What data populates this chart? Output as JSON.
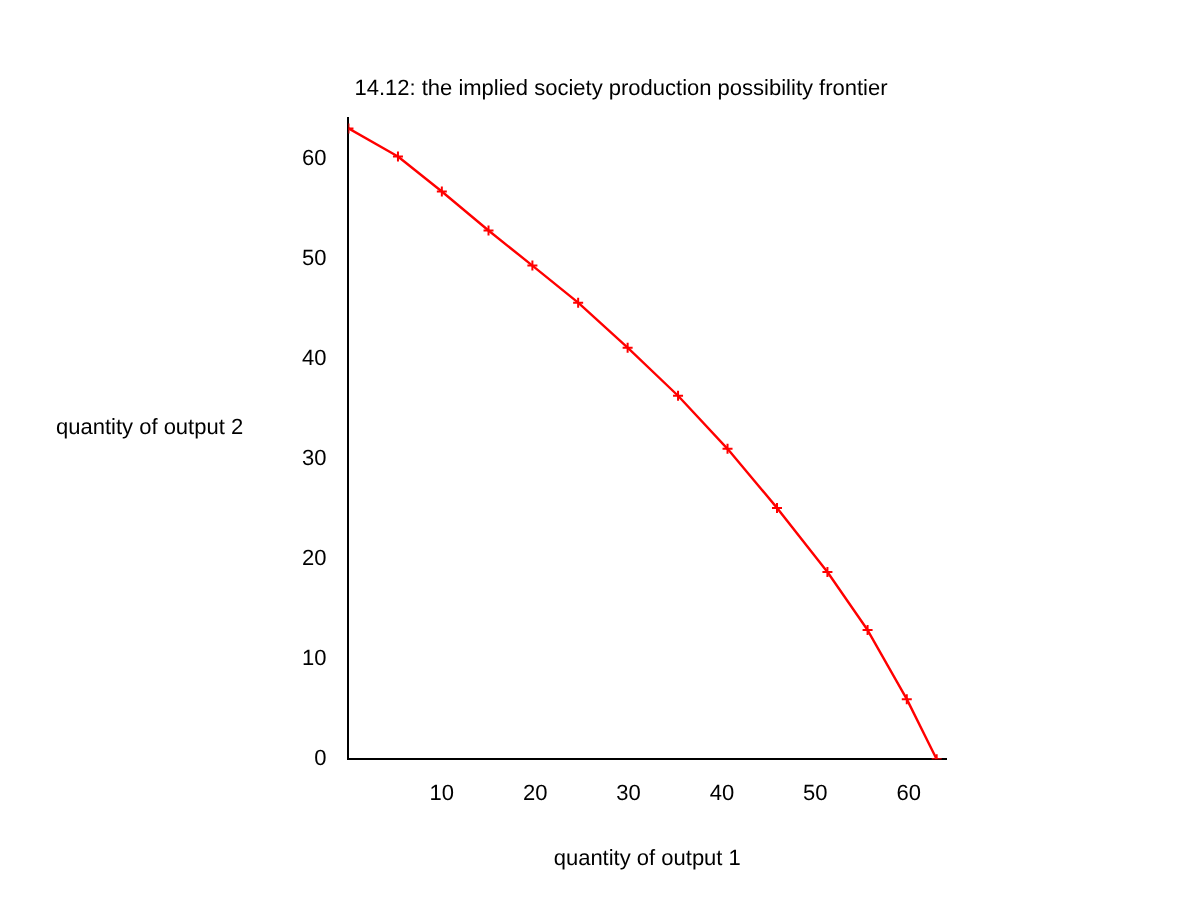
{
  "chart_data": {
    "type": "line",
    "title": "14.12: the implied society production possibility frontier",
    "xlabel": "quantity of output 1",
    "ylabel": "quantity of output 2",
    "x": [
      0,
      5.3,
      10,
      15,
      19.7,
      24.6,
      29.9,
      35.3,
      40.6,
      45.9,
      51.3,
      55.6,
      59.8,
      63
    ],
    "series": [
      {
        "color": "#ff0000",
        "values": [
          63,
          60.2,
          56.7,
          52.8,
          49.3,
          45.6,
          41.1,
          36.3,
          31,
          25.1,
          18.7,
          12.9,
          6,
          0
        ]
      }
    ],
    "xlim": [
      0,
      64
    ],
    "ylim": [
      0,
      64
    ],
    "xticks": [
      10,
      20,
      30,
      40,
      50,
      60
    ],
    "yticks": [
      0,
      10,
      20,
      30,
      40,
      50,
      60
    ],
    "grid": false,
    "legend": false,
    "marker": "cross",
    "line_style": "solid"
  }
}
